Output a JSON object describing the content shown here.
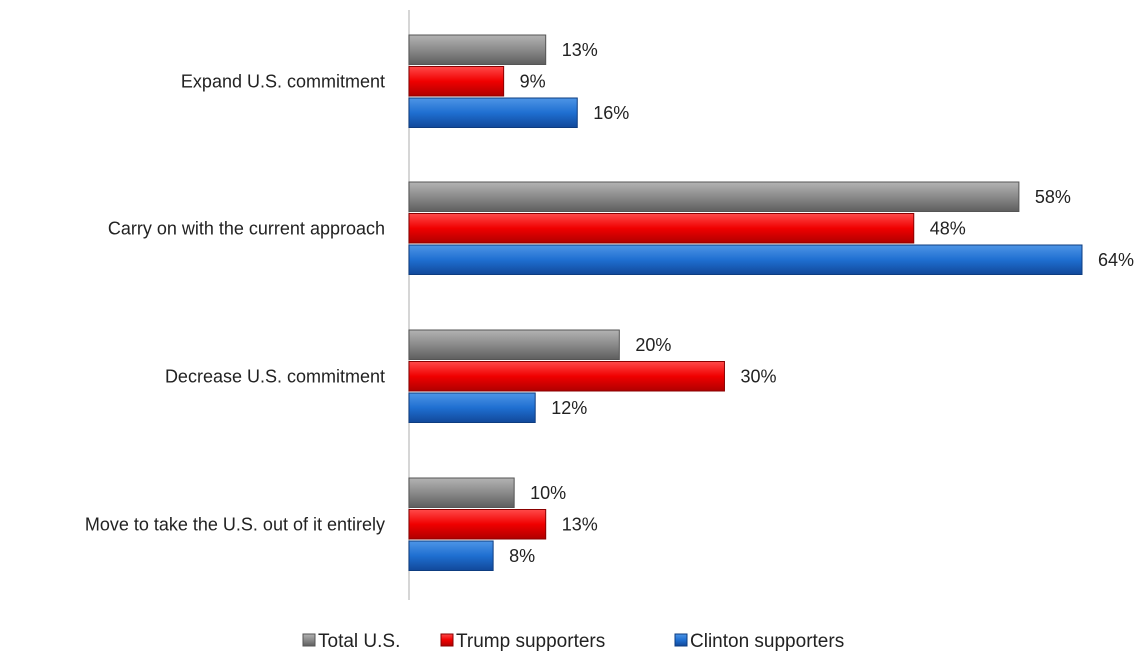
{
  "chart_data": {
    "type": "bar",
    "orientation": "horizontal",
    "categories": [
      "Expand U.S. commitment",
      "Carry on with the current approach",
      "Decrease U.S. commitment",
      "Move to take the U.S. out of it entirely"
    ],
    "series": [
      {
        "name": "Total U.S.",
        "color": "#7f7f7f",
        "values": [
          13,
          58,
          20,
          10
        ]
      },
      {
        "name": "Trump supporters",
        "color": "#ff0000",
        "values": [
          9,
          48,
          30,
          13
        ]
      },
      {
        "name": "Clinton supporters",
        "color": "#1f6fd1",
        "values": [
          16,
          64,
          12,
          8
        ]
      }
    ],
    "value_suffix": "%",
    "xlim": [
      0,
      64
    ],
    "grid": false,
    "legend_position": "bottom"
  }
}
